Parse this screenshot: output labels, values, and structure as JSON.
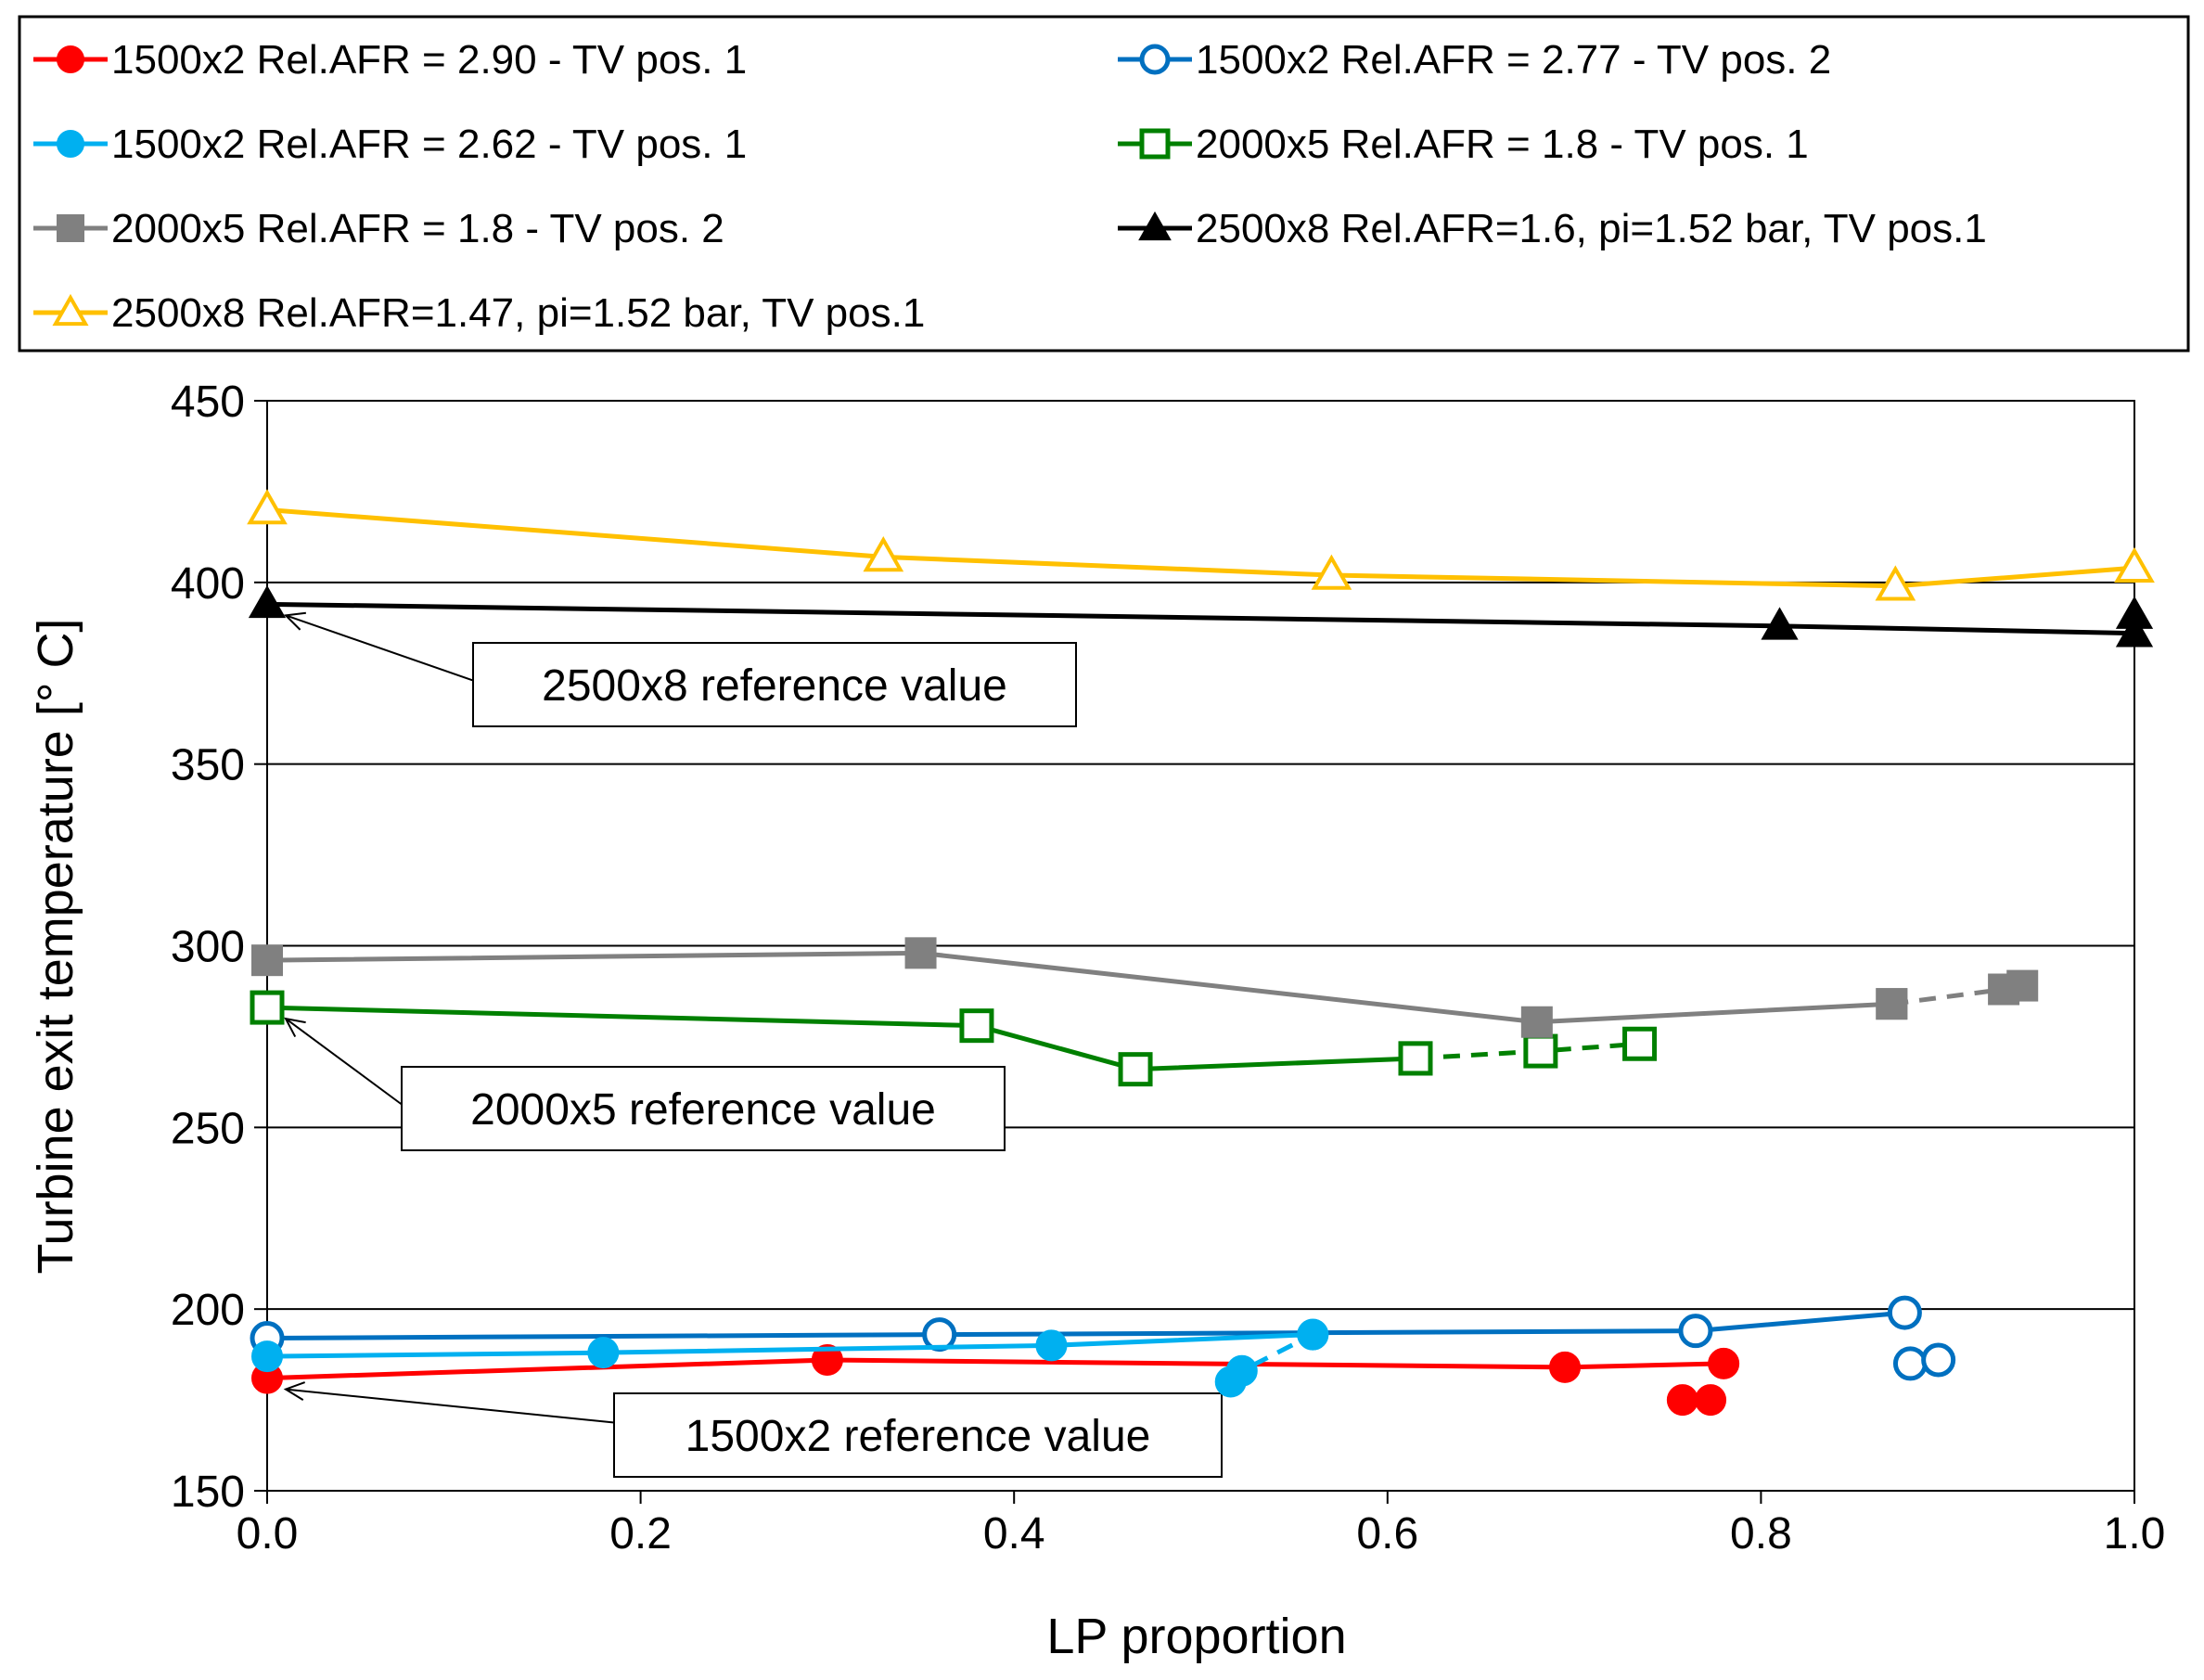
{
  "chart_data": {
    "type": "line",
    "title": "",
    "xlabel": "LP proportion",
    "ylabel": "Turbine exit temperature [° C]",
    "xlim": [
      0.0,
      1.0
    ],
    "ylim": [
      150,
      450
    ],
    "xticks": [
      "0.0",
      "0.2",
      "0.4",
      "0.6",
      "0.8",
      "1.0"
    ],
    "yticks": [
      "150",
      "200",
      "250",
      "300",
      "350",
      "400",
      "450"
    ],
    "grid": "horizontal",
    "legend_position": "top",
    "series": [
      {
        "name": "1500x2 Rel.AFR = 2.90 - TV pos. 1",
        "color": "#ff0000",
        "marker": "circle-filled",
        "x": [
          0.0,
          0.3,
          0.695,
          0.78
        ],
        "y": [
          181,
          186,
          184,
          185
        ],
        "extra_points": {
          "x": [
            0.758,
            0.773
          ],
          "y": [
            175,
            175
          ]
        }
      },
      {
        "name": "1500x2 Rel.AFR = 2.77 - TV pos. 2",
        "color": "#0070c0",
        "marker": "circle-open",
        "x": [
          0.0,
          0.36,
          0.765,
          0.877
        ],
        "y": [
          192,
          193,
          194,
          199
        ],
        "extra_points": {
          "x": [
            0.88,
            0.895
          ],
          "y": [
            185,
            186
          ]
        }
      },
      {
        "name": "1500x2 Rel.AFR = 2.62 - TV pos. 1",
        "color": "#00b0f0",
        "marker": "circle-filled",
        "x": [
          0.0,
          0.18,
          0.42,
          0.56
        ],
        "y": [
          187,
          188,
          190,
          193
        ],
        "dashed_tail": {
          "x": [
            0.516,
            0.522,
            0.56
          ],
          "y": [
            180,
            183,
            193
          ]
        }
      },
      {
        "name": "2000x5 Rel.AFR = 1.8 - TV pos. 1",
        "color": "#008000",
        "marker": "square-open",
        "x": [
          0.0,
          0.38,
          0.465,
          0.615
        ],
        "y": [
          283,
          278,
          266,
          269
        ],
        "dashed_tail": {
          "x": [
            0.615,
            0.682,
            0.735
          ],
          "y": [
            269,
            271,
            273
          ]
        }
      },
      {
        "name": "2000x5 Rel.AFR = 1.8 - TV pos. 2",
        "color": "#808080",
        "marker": "square-filled",
        "x": [
          0.0,
          0.35,
          0.68,
          0.87
        ],
        "y": [
          296,
          298,
          279,
          284
        ],
        "dashed_tail": {
          "x": [
            0.87,
            0.93,
            0.94
          ],
          "y": [
            284,
            288,
            289
          ]
        }
      },
      {
        "name": "2500x8 Rel.AFR=1.6, pi=1.52 bar, TV pos.1",
        "color": "#000000",
        "marker": "triangle-filled",
        "x": [
          0.0,
          0.81,
          1.0,
          1.0
        ],
        "y": [
          394,
          388,
          386,
          391
        ]
      },
      {
        "name": "2500x8 Rel.AFR=1.47, pi=1.52 bar, TV pos.1",
        "color": "#ffc000",
        "marker": "triangle-open",
        "x": [
          0.0,
          0.33,
          0.57,
          0.872,
          1.0
        ],
        "y": [
          420,
          407,
          402,
          399,
          404
        ]
      }
    ],
    "annotations": [
      {
        "text": "2500x8 reference value",
        "x": 0.0,
        "y": 394
      },
      {
        "text": "2000x5 reference value",
        "x": 0.0,
        "y": 283
      },
      {
        "text": "1500x2 reference value",
        "x": 0.0,
        "y": 181
      }
    ]
  }
}
